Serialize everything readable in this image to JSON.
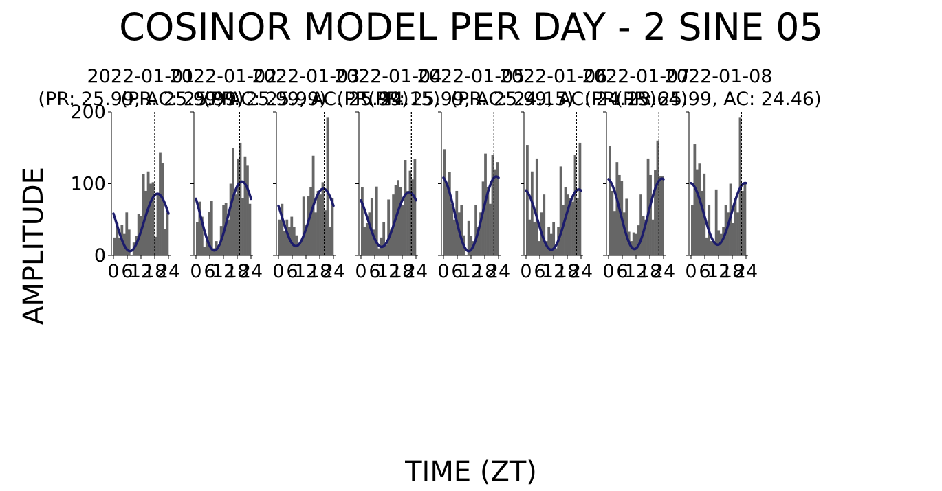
{
  "figure": {
    "title": "COSINOR MODEL PER DAY - 2 SINE 05",
    "xlabel": "TIME (ZT)",
    "ylabel": "AMPLITUDE"
  },
  "chart_data": {
    "type": "bar",
    "overlay": "fitted cosine curve per day",
    "x_ticks": [
      "0",
      "6",
      "12",
      "18",
      "24"
    ],
    "y_ticks": [
      "0",
      "100",
      "200"
    ],
    "xlim": [
      0,
      24
    ],
    "ylim": [
      0,
      200
    ],
    "colors": {
      "bars": "#666666",
      "curve": "#1c1c6c",
      "marker": "#000000"
    },
    "panels": [
      {
        "day": "2022-01-01",
        "subtitle": "(PR: 25.99, AC: 25.99)",
        "marker_x": 18,
        "bars": [
          25,
          45,
          25,
          43,
          30,
          60,
          36,
          0,
          18,
          27,
          58,
          55,
          113,
          90,
          117,
          100,
          102,
          26,
          87,
          143,
          129,
          37,
          60
        ],
        "fit": {
          "mesor": 46,
          "amplitude": 40,
          "acrophase": 19.2
        }
      },
      {
        "day": "2022-01-02",
        "subtitle": "(PR: 25.99, AC: 25.99)",
        "marker_x": 19,
        "bars": [
          46,
          75,
          54,
          12,
          20,
          61,
          76,
          10,
          20,
          12,
          41,
          70,
          73,
          50,
          100,
          150,
          85,
          135,
          157,
          80,
          138,
          125,
          72
        ],
        "fit": {
          "mesor": 55,
          "amplitude": 48,
          "acrophase": 20.0
        }
      },
      {
        "day": "2022-01-03",
        "subtitle": "(PR: 25.99, AC: 25.99)",
        "marker_x": 20,
        "bars": [
          50,
          72,
          34,
          50,
          40,
          54,
          40,
          28,
          14,
          20,
          82,
          42,
          83,
          95,
          139,
          60,
          90,
          85,
          102,
          63,
          192,
          40,
          80
        ],
        "fit": {
          "mesor": 53,
          "amplitude": 40,
          "acrophase": 19.6
        }
      },
      {
        "day": "2022-01-04",
        "subtitle": "(PR: 24.15)",
        "marker_x": 22,
        "bars": [
          95,
          40,
          45,
          60,
          80,
          36,
          96,
          10,
          25,
          46,
          15,
          78,
          36,
          85,
          98,
          105,
          95,
          70,
          133,
          90,
          118,
          106,
          134
        ],
        "fit": {
          "mesor": 50,
          "amplitude": 38,
          "acrophase": 21.0
        }
      },
      {
        "day": "2022-01-05",
        "subtitle": "(PR: 25.99, AC: 24.15)",
        "marker_x": 22,
        "bars": [
          148,
          100,
          116,
          72,
          50,
          90,
          60,
          70,
          28,
          0,
          48,
          27,
          20,
          70,
          40,
          60,
          103,
          142,
          95,
          72,
          140,
          120,
          130
        ],
        "fit": {
          "mesor": 58,
          "amplitude": 52,
          "acrophase": 23.0
        }
      },
      {
        "day": "2022-01-06",
        "subtitle": "(PR: 25.99, AC: 24.15)",
        "marker_x": 22,
        "bars": [
          154,
          50,
          117,
          46,
          135,
          20,
          60,
          85,
          20,
          40,
          30,
          46,
          10,
          40,
          124,
          70,
          95,
          85,
          80,
          75,
          140,
          80,
          157
        ],
        "fit": {
          "mesor": 50,
          "amplitude": 42,
          "acrophase": 23.0
        }
      },
      {
        "day": "2022-01-07",
        "subtitle": "(PR: 23.64)",
        "marker_x": 22,
        "bars": [
          153,
          90,
          62,
          130,
          112,
          104,
          60,
          79,
          33,
          20,
          32,
          30,
          42,
          85,
          55,
          50,
          135,
          112,
          50,
          119,
          160,
          110,
          110
        ],
        "fit": {
          "mesor": 58,
          "amplitude": 49,
          "acrophase": 23.3
        }
      },
      {
        "day": "2022-01-08",
        "subtitle": "(PR: 25.99, AC: 24.46)",
        "marker_x": 22,
        "bars": [
          70,
          155,
          120,
          128,
          90,
          114,
          25,
          70,
          20,
          20,
          92,
          35,
          30,
          40,
          70,
          60,
          100,
          45,
          80,
          60,
          192,
          90,
          100
        ],
        "fit": {
          "mesor": 58,
          "amplitude": 43,
          "acrophase": 23.6
        }
      }
    ]
  }
}
